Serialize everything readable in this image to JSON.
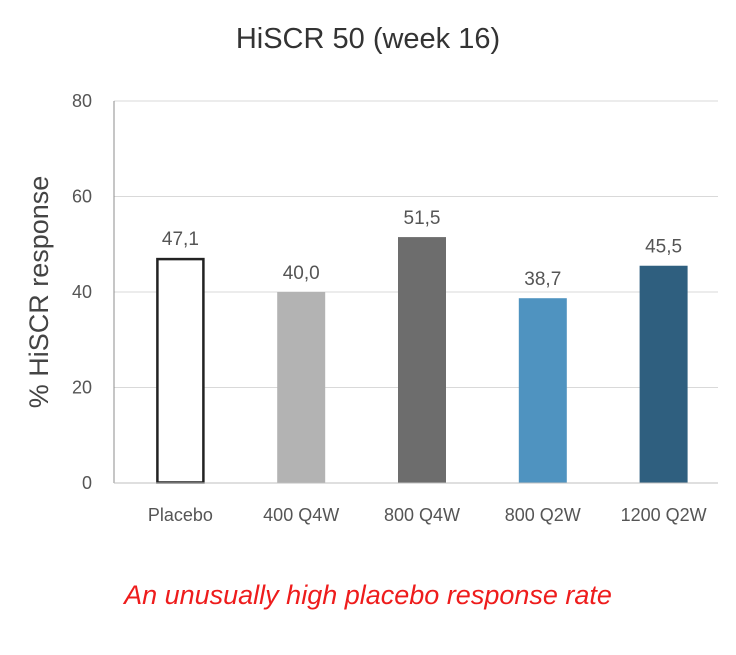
{
  "chart_data": {
    "type": "bar",
    "title": "HiSCR 50 (week 16)",
    "xlabel": "",
    "ylabel": "% HiSCR response",
    "ylim": [
      0,
      80
    ],
    "yticks": [
      0,
      20,
      40,
      60,
      80
    ],
    "grid": true,
    "categories": [
      "Placebo",
      "400 Q4W",
      "800 Q4W",
      "800 Q2W",
      "1200 Q2W"
    ],
    "values": [
      47.1,
      40.0,
      51.5,
      38.7,
      45.5
    ],
    "data_labels": [
      "47,1",
      "40,0",
      "51,5",
      "38,7",
      "45,5"
    ],
    "bar_fill_colors": [
      "#ffffff",
      "#b3b3b3",
      "#6d6d6d",
      "#4f93c0",
      "#2f5f7f"
    ],
    "bar_stroke_colors": [
      "#222222",
      "none",
      "none",
      "none",
      "none"
    ]
  },
  "annotation": "An unusually high placebo response rate",
  "colors": {
    "annotation": "#ee1c1c",
    "text": "#555555"
  }
}
